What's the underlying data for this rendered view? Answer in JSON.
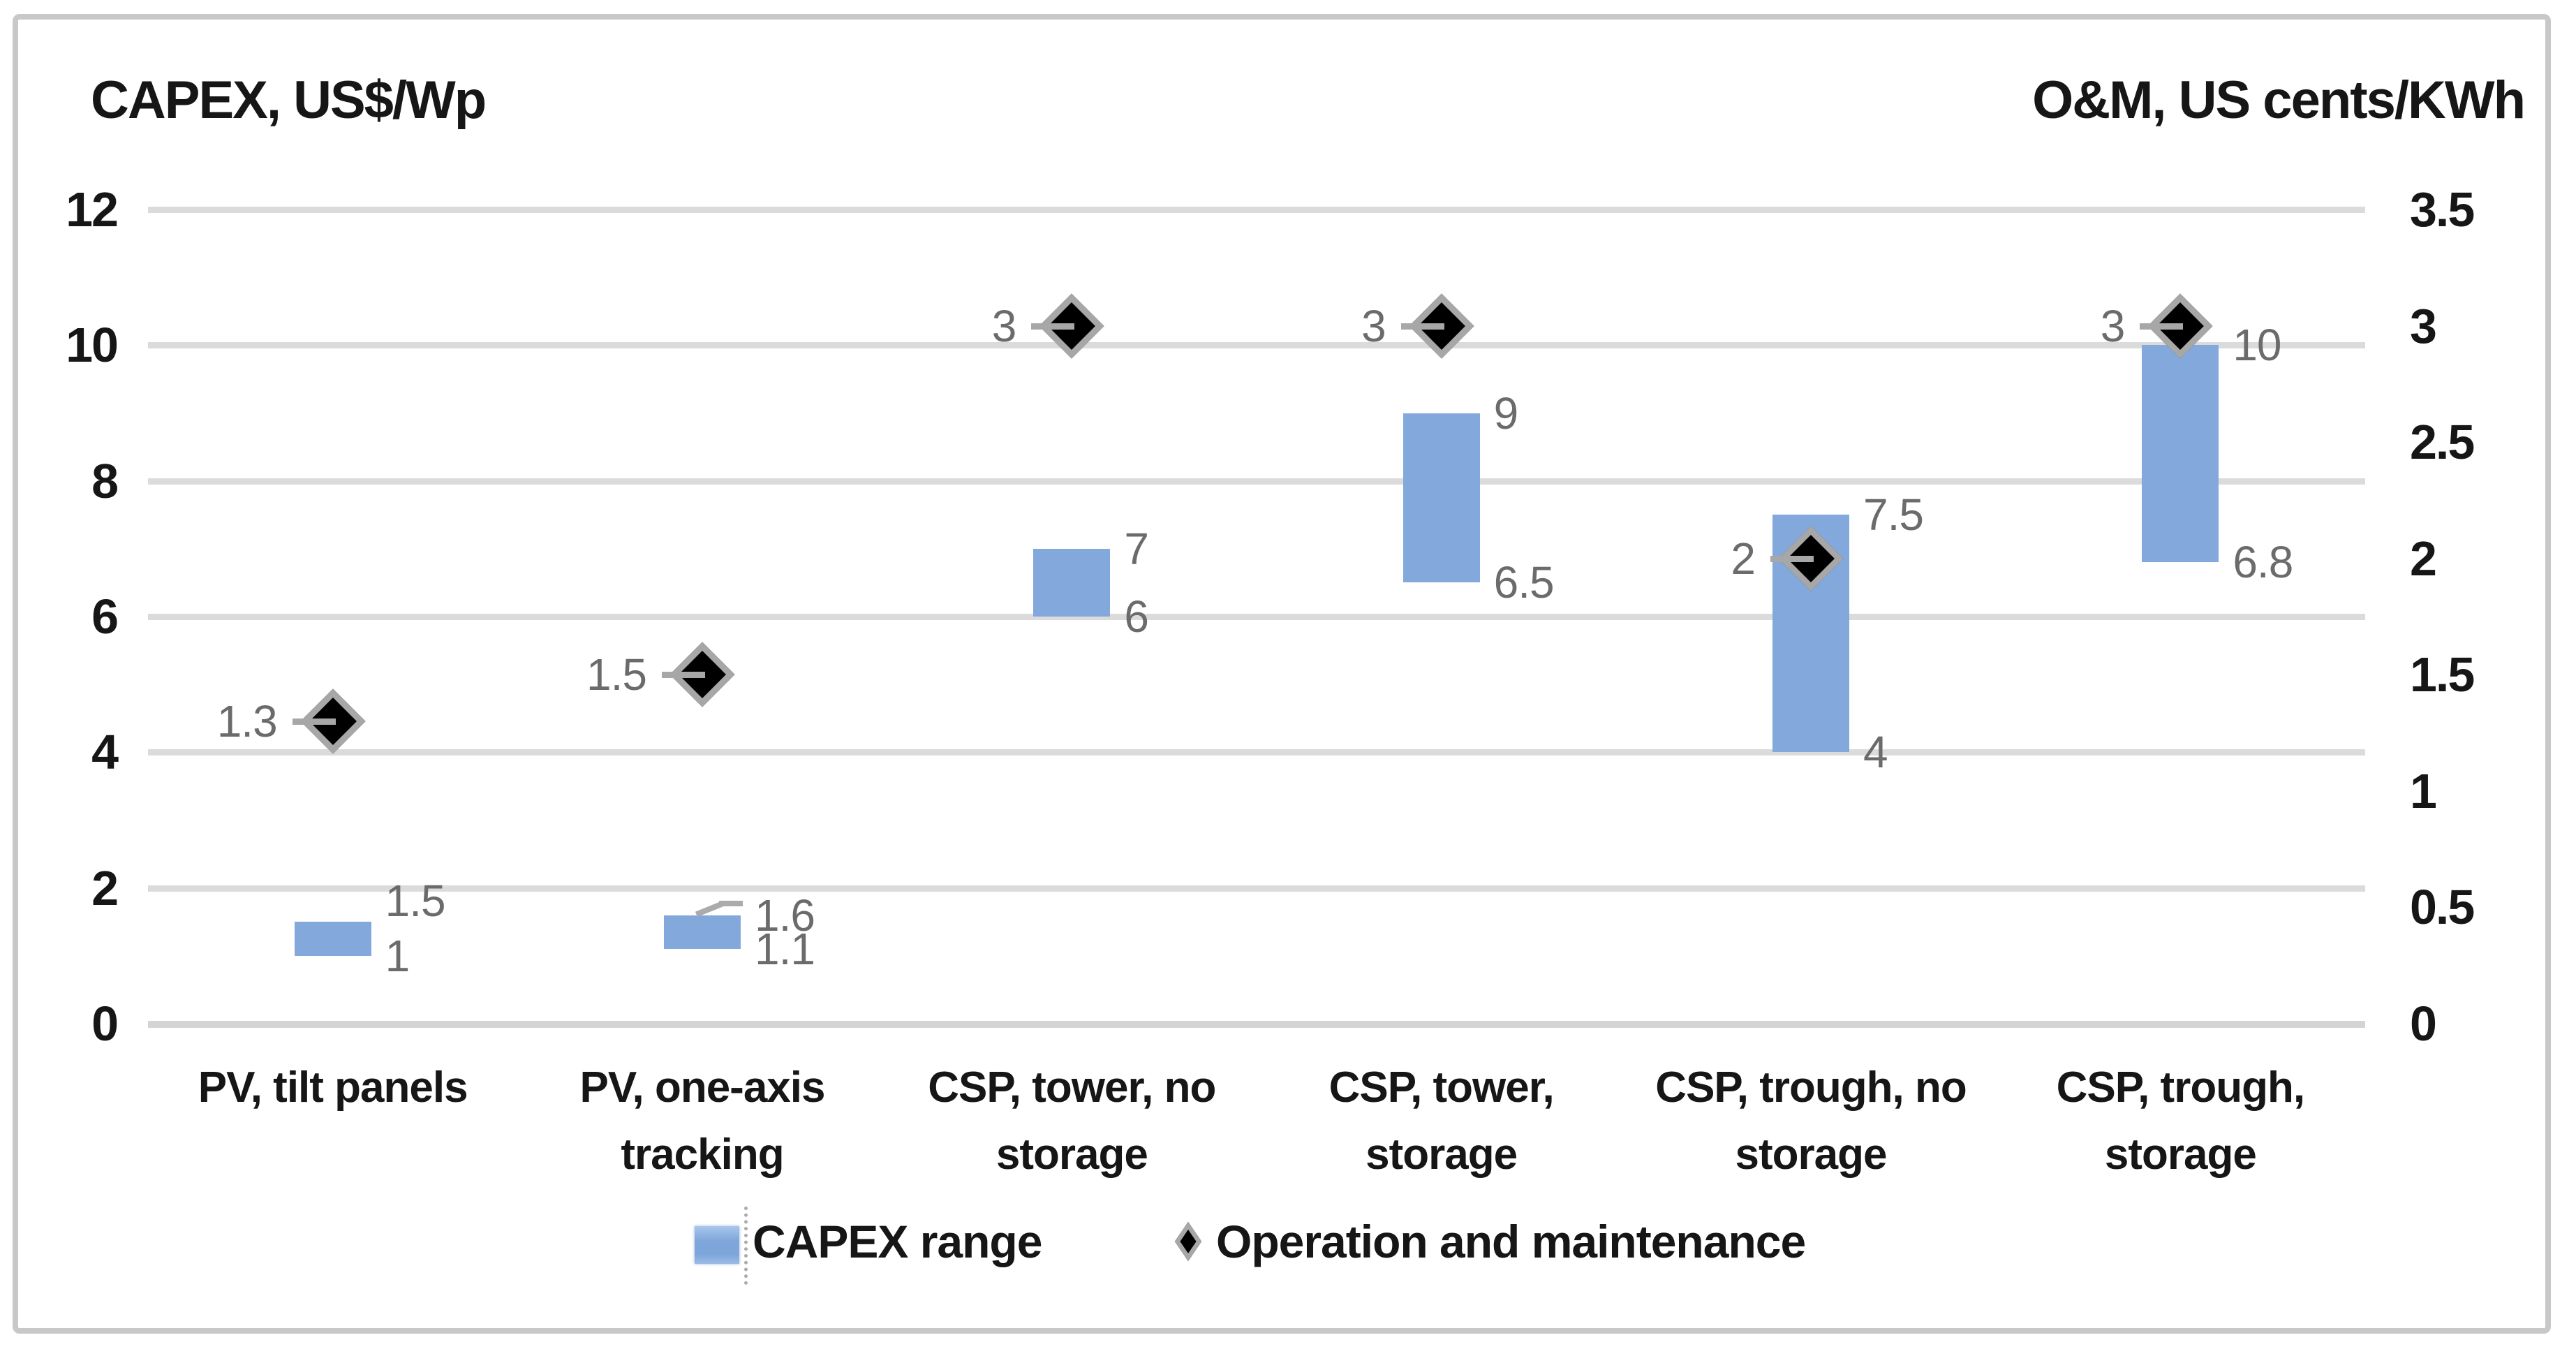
{
  "chart_data": {
    "type": "bar",
    "subtype": "floating-range-bars-with-diamond-markers",
    "title_left": "CAPEX, US$/Wp",
    "title_right": "O&M, US cents/KWh",
    "left_axis": {
      "label": "CAPEX, US$/Wp",
      "min": 0,
      "max": 12,
      "tick_step": 2,
      "tick_labels": [
        "0",
        "2",
        "4",
        "6",
        "8",
        "10",
        "12"
      ]
    },
    "right_axis": {
      "label": "O&M, US cents/KWh",
      "min": 0,
      "max": 3.5,
      "tick_step": 0.5,
      "tick_labels": [
        "0",
        "0.5",
        "1",
        "1.5",
        "2",
        "2.5",
        "3",
        "3.5"
      ]
    },
    "grid": true,
    "legend": {
      "position": "bottom",
      "items": [
        {
          "swatch": "bar",
          "label": "CAPEX range"
        },
        {
          "swatch": "diamond",
          "label": "Operation and maintenance"
        }
      ]
    },
    "categories": [
      {
        "label_lines": [
          "PV, tilt panels"
        ],
        "capex_min": 1,
        "capex_max": 1.5,
        "om": 1.3
      },
      {
        "label_lines": [
          "PV, one-axis",
          "tracking"
        ],
        "capex_min": 1.1,
        "capex_max": 1.6,
        "om": 1.5,
        "max_label_leader": true
      },
      {
        "label_lines": [
          "CSP, tower, no",
          "storage"
        ],
        "capex_min": 6,
        "capex_max": 7,
        "om": 3
      },
      {
        "label_lines": [
          "CSP, tower,",
          "storage"
        ],
        "capex_min": 6.5,
        "capex_max": 9,
        "om": 3
      },
      {
        "label_lines": [
          "CSP, trough, no",
          "storage"
        ],
        "capex_min": 4,
        "capex_max": 7.5,
        "om": 2
      },
      {
        "label_lines": [
          "CSP, trough,",
          "storage"
        ],
        "capex_min": 6.8,
        "capex_max": 10,
        "om": 3
      }
    ],
    "colors": {
      "bar": "#83A9DC",
      "gridline": "#DBDBDB",
      "marker_fill": "#000000",
      "marker_border": "#A7A7A7",
      "data_label": "#6B6B6B",
      "text": "#161616",
      "frame": "#C8C8C8"
    }
  }
}
